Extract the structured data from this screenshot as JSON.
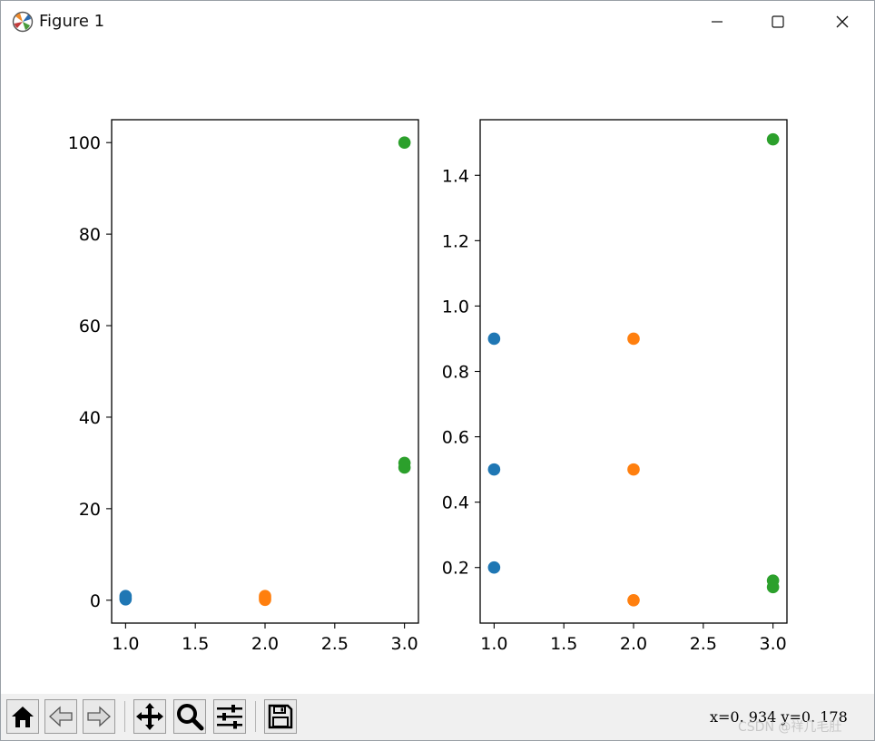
{
  "window": {
    "title": "Figure 1",
    "app_icon": "matplotlib-logo-icon",
    "controls": [
      "minimize-icon",
      "maximize-icon",
      "close-icon"
    ]
  },
  "toolbar": {
    "buttons": [
      {
        "name": "home",
        "icon": "home-icon"
      },
      {
        "name": "back",
        "icon": "arrow-left-icon"
      },
      {
        "name": "forward",
        "icon": "arrow-right-icon"
      },
      {
        "name": "pan",
        "icon": "move-icon"
      },
      {
        "name": "zoom",
        "icon": "magnifier-icon"
      },
      {
        "name": "configure-subplots",
        "icon": "sliders-icon"
      },
      {
        "name": "save",
        "icon": "floppy-disk-icon"
      }
    ],
    "coords_text": "x=0. 934  y=0. 178",
    "watermark": "CSDN @祥几毛肚"
  },
  "chart_data": [
    {
      "type": "scatter",
      "title": "",
      "xlabel": "",
      "ylabel": "",
      "xlim": [
        0.9,
        3.1
      ],
      "ylim": [
        -5,
        105
      ],
      "xticks": [
        "1.0",
        "1.5",
        "2.0",
        "2.5",
        "3.0"
      ],
      "yticks": [
        "0",
        "20",
        "40",
        "60",
        "80",
        "100"
      ],
      "grid": false,
      "series": [
        {
          "color": "#1f77b4",
          "points": [
            [
              1,
              0.2
            ],
            [
              1,
              0.5
            ],
            [
              1,
              0.9
            ]
          ]
        },
        {
          "color": "#ff7f0e",
          "points": [
            [
              2,
              0.1
            ],
            [
              2,
              0.5
            ],
            [
              2,
              0.9
            ]
          ]
        },
        {
          "color": "#2ca02c",
          "points": [
            [
              3,
              29
            ],
            [
              3,
              30
            ],
            [
              3,
              100
            ]
          ]
        }
      ]
    },
    {
      "type": "scatter",
      "title": "",
      "xlabel": "",
      "ylabel": "",
      "xlim": [
        0.9,
        3.1
      ],
      "ylim": [
        0.03,
        1.57
      ],
      "xticks": [
        "1.0",
        "1.5",
        "2.0",
        "2.5",
        "3.0"
      ],
      "yticks": [
        "0.2",
        "0.4",
        "0.6",
        "0.8",
        "1.0",
        "1.2",
        "1.4"
      ],
      "grid": false,
      "series": [
        {
          "color": "#1f77b4",
          "points": [
            [
              1,
              0.2
            ],
            [
              1,
              0.5
            ],
            [
              1,
              0.9
            ]
          ]
        },
        {
          "color": "#ff7f0e",
          "points": [
            [
              2,
              0.1
            ],
            [
              2,
              0.5
            ],
            [
              2,
              0.9
            ]
          ]
        },
        {
          "color": "#2ca02c",
          "points": [
            [
              3,
              0.14
            ],
            [
              3,
              0.16
            ],
            [
              3,
              1.51
            ]
          ]
        }
      ]
    }
  ]
}
